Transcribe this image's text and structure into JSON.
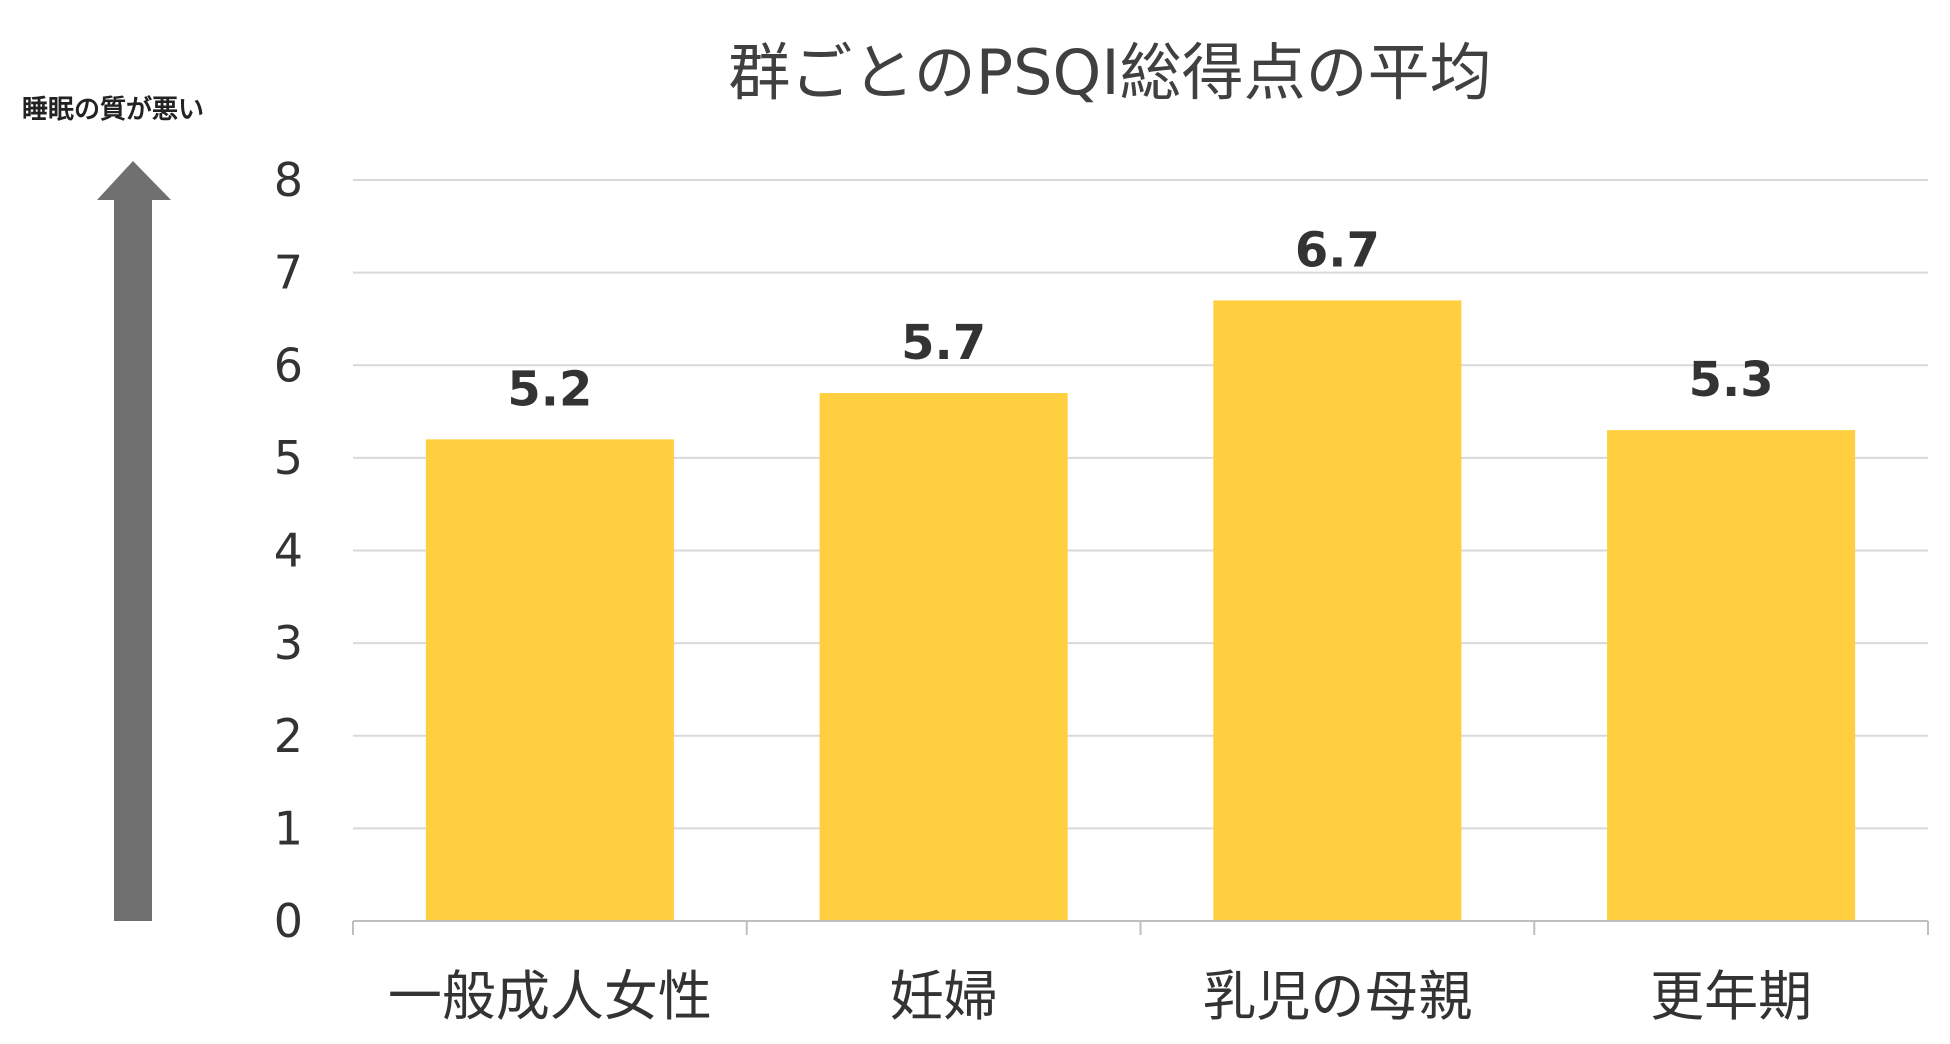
{
  "chart_data": {
    "type": "bar",
    "title": "群ごとのPSQI総得点の平均",
    "side_label": "睡眠の質が悪い",
    "categories": [
      "一般成人女性",
      "妊婦",
      "乳児の母親",
      "更年期"
    ],
    "values": [
      5.2,
      5.7,
      6.7,
      5.3
    ],
    "value_labels": [
      "5.2",
      "5.7",
      "6.7",
      "5.3"
    ],
    "ylim": [
      0,
      8
    ],
    "yticks": [
      "0",
      "1",
      "2",
      "3",
      "4",
      "5",
      "6",
      "7",
      "8"
    ],
    "grid": true,
    "legend": "none"
  },
  "colors": {
    "bar": "#FFCF3F",
    "grid": "#D9D9D9",
    "axis": "#BFBFBF",
    "arrow": "#707070"
  },
  "icons": {
    "side_arrow": "up-arrow-icon"
  }
}
